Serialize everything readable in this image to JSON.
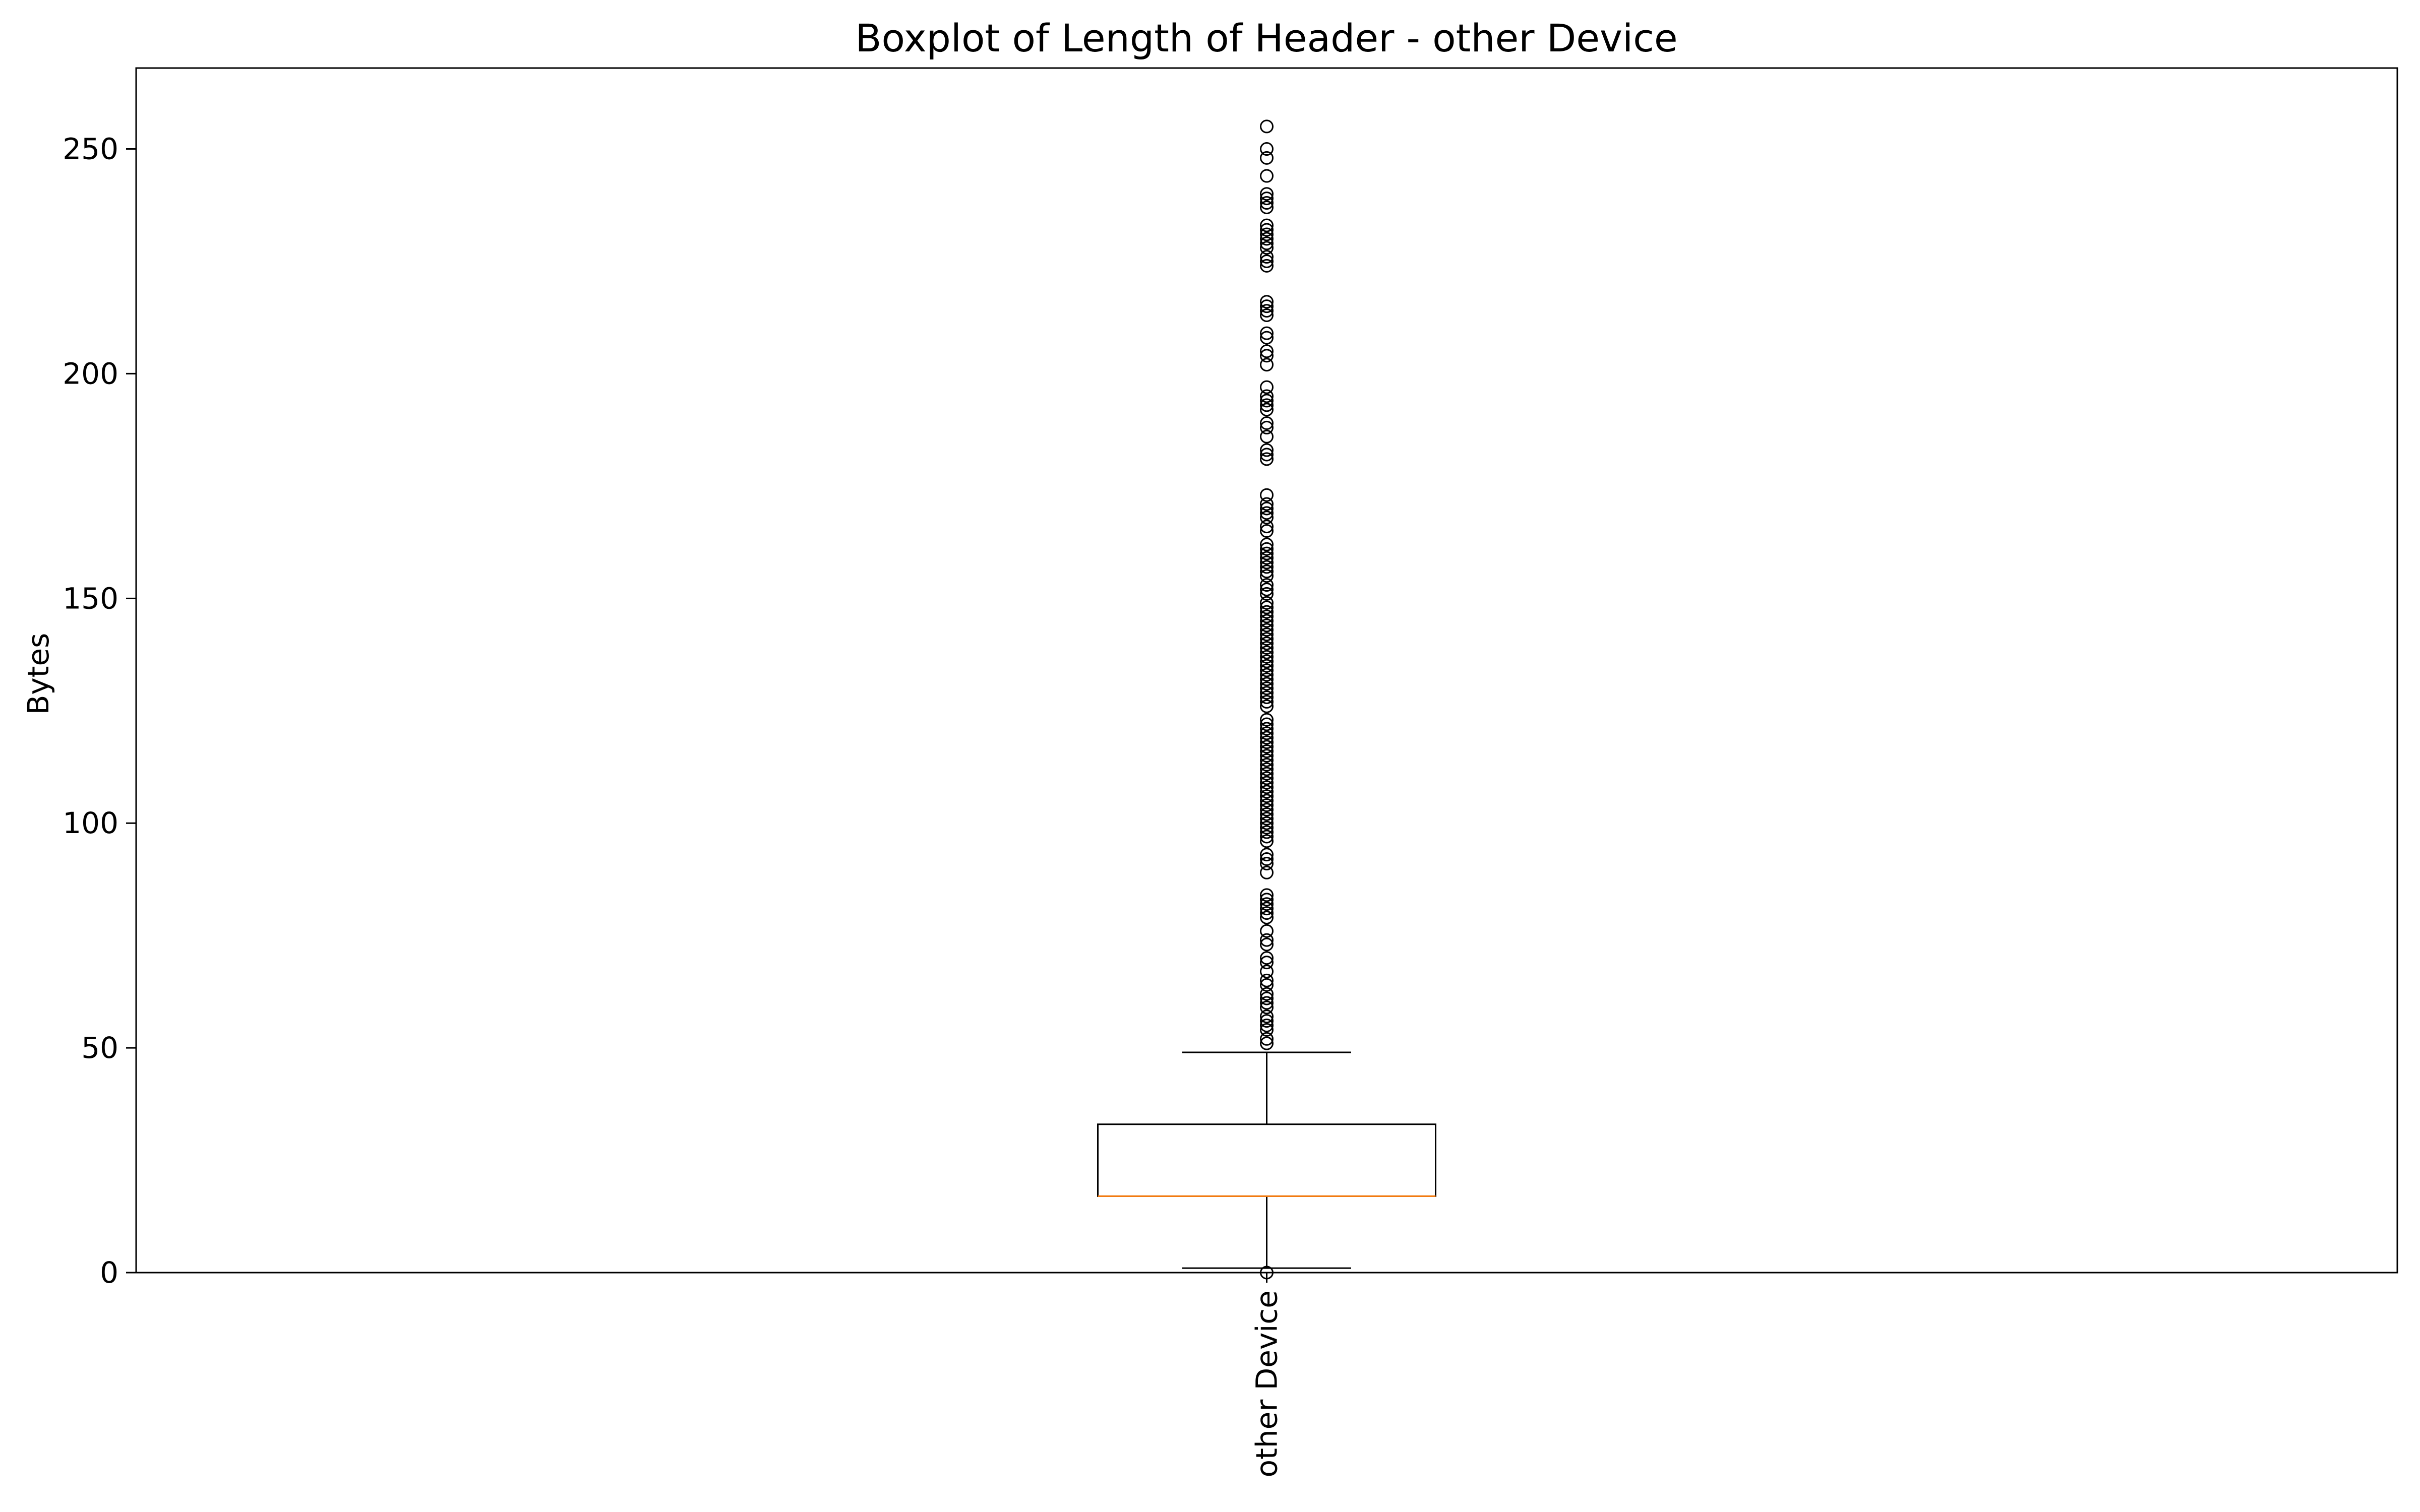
{
  "chart_data": {
    "type": "boxplot",
    "title": "Boxplot of Length of Header - other Device",
    "xlabel": "",
    "ylabel": "Bytes",
    "ylim": [
      0,
      268
    ],
    "yticks": [
      0,
      50,
      100,
      150,
      200,
      250
    ],
    "grid": false,
    "legend": "none",
    "categories": [
      "other Device"
    ],
    "series": [
      {
        "category": "other Device",
        "whisker_low": 1,
        "q1": 17,
        "median": 17,
        "q3": 33,
        "whisker_high": 49,
        "outliers": [
          0,
          51,
          52,
          54,
          55,
          56,
          57,
          59,
          60,
          61,
          62,
          64,
          65,
          67,
          69,
          70,
          73,
          74,
          76,
          79,
          80,
          81,
          82,
          83,
          84,
          89,
          91,
          92,
          93,
          96,
          97,
          98,
          99,
          100,
          101,
          102,
          103,
          104,
          105,
          106,
          107,
          108,
          109,
          110,
          111,
          112,
          113,
          114,
          115,
          116,
          117,
          118,
          119,
          120,
          121,
          122,
          123,
          126,
          127,
          128,
          129,
          130,
          131,
          132,
          133,
          134,
          135,
          136,
          137,
          138,
          139,
          140,
          141,
          142,
          143,
          144,
          145,
          146,
          147,
          148,
          149,
          151,
          152,
          153,
          155,
          156,
          157,
          158,
          159,
          160,
          161,
          162,
          165,
          166,
          168,
          169,
          170,
          171,
          173,
          181,
          182,
          183,
          186,
          188,
          189,
          192,
          193,
          194,
          195,
          197,
          202,
          204,
          205,
          208,
          209,
          213,
          214,
          215,
          216,
          224,
          225,
          226,
          228,
          229,
          230,
          231,
          232,
          233,
          237,
          238,
          239,
          240,
          244,
          248,
          250,
          255
        ]
      }
    ],
    "colors": {
      "box": "#000000",
      "median": "#ff7f0e",
      "whisker": "#000000",
      "outlier": "#000000"
    }
  }
}
